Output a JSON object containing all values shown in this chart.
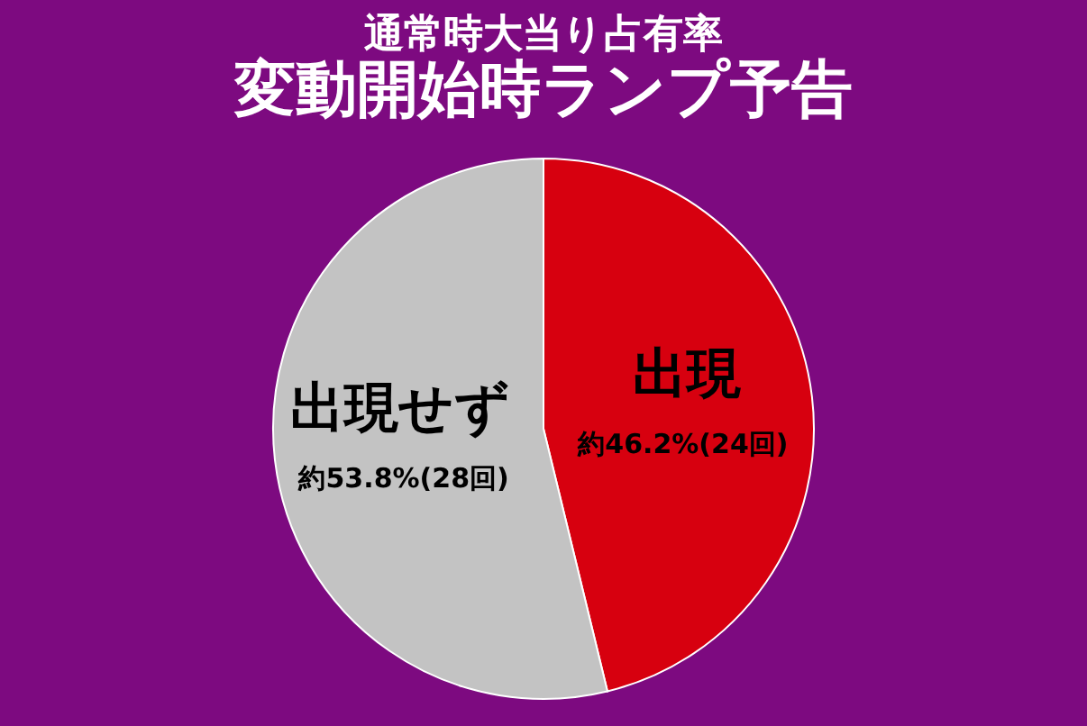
{
  "chart_data": {
    "type": "pie",
    "title": "通常時大当り占有率",
    "subtitle": "変動開始時ランプ予告",
    "categories": [
      "出現",
      "出現せず"
    ],
    "values": [
      46.2,
      53.8
    ],
    "colors": [
      "#d7000f",
      "#c3c3c3"
    ],
    "value_labels": [
      "約46.2%(24回)",
      "約53.8%(28回)"
    ],
    "legend": false
  }
}
